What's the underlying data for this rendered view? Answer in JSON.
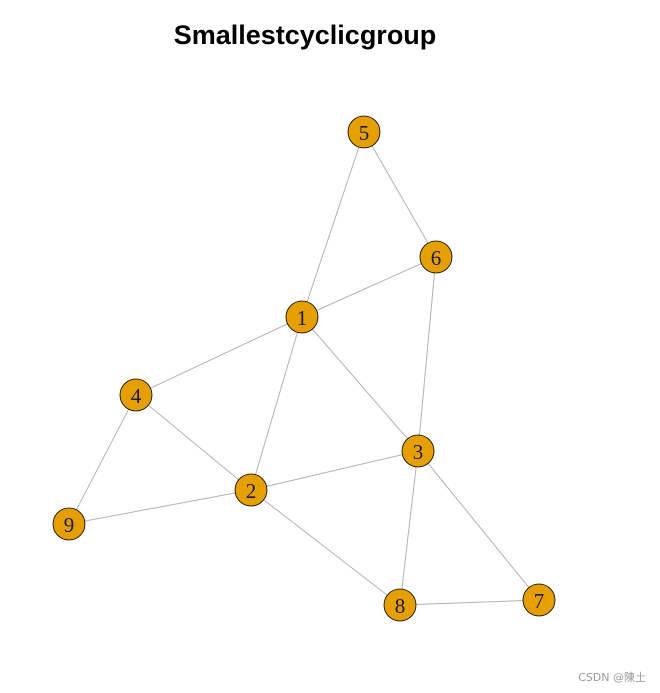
{
  "title": "Smallestcyclicgroup",
  "watermark": "CSDN @陳土",
  "colors": {
    "node_fill": "#e69f00",
    "node_stroke": "#000000",
    "edge": "#b3b3b3",
    "label": "#1a1a55"
  },
  "nodes": [
    {
      "id": "1",
      "label": "1"
    },
    {
      "id": "2",
      "label": "2"
    },
    {
      "id": "3",
      "label": "3"
    },
    {
      "id": "4",
      "label": "4"
    },
    {
      "id": "5",
      "label": "5"
    },
    {
      "id": "6",
      "label": "6"
    },
    {
      "id": "7",
      "label": "7"
    },
    {
      "id": "8",
      "label": "8"
    },
    {
      "id": "9",
      "label": "9"
    }
  ],
  "edges": [
    [
      "5",
      "1"
    ],
    [
      "5",
      "6"
    ],
    [
      "1",
      "6"
    ],
    [
      "6",
      "3"
    ],
    [
      "1",
      "4"
    ],
    [
      "1",
      "2"
    ],
    [
      "1",
      "3"
    ],
    [
      "4",
      "9"
    ],
    [
      "4",
      "2"
    ],
    [
      "9",
      "2"
    ],
    [
      "2",
      "3"
    ],
    [
      "2",
      "8"
    ],
    [
      "3",
      "8"
    ],
    [
      "3",
      "7"
    ],
    [
      "8",
      "7"
    ]
  ]
}
